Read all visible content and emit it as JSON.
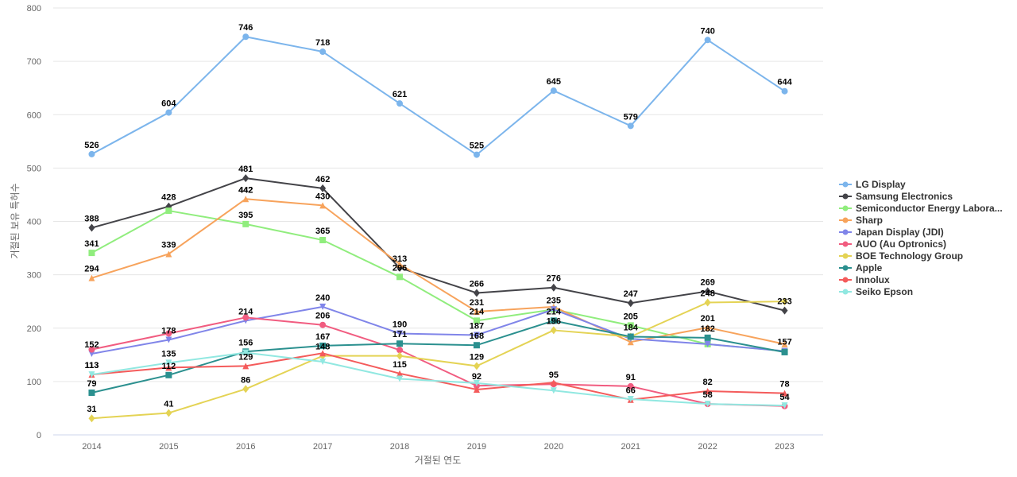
{
  "chart_data": {
    "type": "line",
    "xlabel": "거절된 연도",
    "ylabel": "거절된 보유 특허수",
    "ylim": [
      0,
      800
    ],
    "yticks": [
      0,
      100,
      200,
      300,
      400,
      500,
      600,
      700,
      800
    ],
    "categories": [
      "2014",
      "2015",
      "2016",
      "2017",
      "2018",
      "2019",
      "2020",
      "2021",
      "2022",
      "2023"
    ],
    "grid": true,
    "legend_position": "right",
    "series": [
      {
        "name": "LG Display",
        "color": "#7cb5ec",
        "marker": "circle",
        "values": [
          526,
          604,
          746,
          718,
          621,
          525,
          645,
          579,
          740,
          644
        ],
        "labels": [
          true,
          true,
          true,
          true,
          true,
          true,
          true,
          true,
          true,
          true
        ]
      },
      {
        "name": "Samsung Electronics",
        "color": "#434348",
        "marker": "diamond",
        "values": [
          388,
          428,
          481,
          462,
          313,
          266,
          276,
          247,
          269,
          233
        ],
        "labels": [
          true,
          true,
          true,
          true,
          true,
          true,
          true,
          true,
          true,
          true
        ]
      },
      {
        "name": "Semiconductor Energy Labora...",
        "color": "#90ed7d",
        "marker": "square",
        "values": [
          341,
          420,
          395,
          365,
          296,
          214,
          235,
          205,
          170,
          157
        ],
        "labels": [
          true,
          false,
          true,
          true,
          true,
          true,
          false,
          true,
          false,
          false
        ]
      },
      {
        "name": "Sharp",
        "color": "#f7a35c",
        "marker": "triangle",
        "values": [
          294,
          339,
          442,
          430,
          320,
          231,
          240,
          174,
          201,
          170
        ],
        "labels": [
          true,
          true,
          true,
          true,
          false,
          true,
          false,
          false,
          true,
          false
        ]
      },
      {
        "name": "Japan Display (JDI)",
        "color": "#8085e9",
        "marker": "triangle-down",
        "values": [
          152,
          178,
          214,
          240,
          190,
          187,
          235,
          180,
          170,
          157
        ],
        "labels": [
          false,
          false,
          false,
          true,
          true,
          true,
          true,
          false,
          false,
          true
        ]
      },
      {
        "name": "AUO (Au Optronics)",
        "color": "#f15c80",
        "marker": "circle",
        "values": [
          160,
          190,
          220,
          206,
          159,
          92,
          95,
          91,
          58,
          54
        ],
        "labels": [
          false,
          false,
          false,
          true,
          false,
          true,
          true,
          true,
          true,
          true
        ]
      },
      {
        "name": "BOE Technology Group",
        "color": "#e4d354",
        "marker": "diamond",
        "values": [
          31,
          41,
          86,
          148,
          148,
          129,
          196,
          184,
          248,
          250
        ],
        "labels": [
          true,
          true,
          true,
          true,
          false,
          true,
          true,
          false,
          true,
          false
        ]
      },
      {
        "name": "Apple",
        "color": "#2b908f",
        "marker": "square",
        "values": [
          79,
          112,
          156,
          167,
          171,
          168,
          214,
          184,
          182,
          155
        ],
        "labels": [
          true,
          true,
          true,
          true,
          true,
          true,
          true,
          true,
          true,
          false
        ]
      },
      {
        "name": "Innolux",
        "color": "#f45b5b",
        "marker": "triangle",
        "values": [
          113,
          126,
          129,
          153,
          115,
          85,
          98,
          66,
          82,
          78
        ],
        "labels": [
          true,
          false,
          true,
          false,
          true,
          false,
          false,
          true,
          true,
          true
        ]
      },
      {
        "name": "Seiko Epson",
        "color": "#91e8e1",
        "marker": "triangle-down",
        "values": [
          113,
          135,
          154,
          137,
          105,
          97,
          83,
          67,
          58,
          55
        ],
        "labels": [
          false,
          true,
          false,
          false,
          false,
          false,
          false,
          false,
          false,
          false
        ]
      }
    ],
    "extra_labels": [
      {
        "category_index": 0,
        "value": 152,
        "text": "152"
      },
      {
        "category_index": 1,
        "value": 178,
        "text": "178"
      },
      {
        "category_index": 2,
        "value": 214,
        "text": "214"
      },
      {
        "category_index": 2,
        "value": 442,
        "text": "442"
      },
      {
        "category_index": 0,
        "value": 113,
        "text": "113"
      }
    ]
  }
}
